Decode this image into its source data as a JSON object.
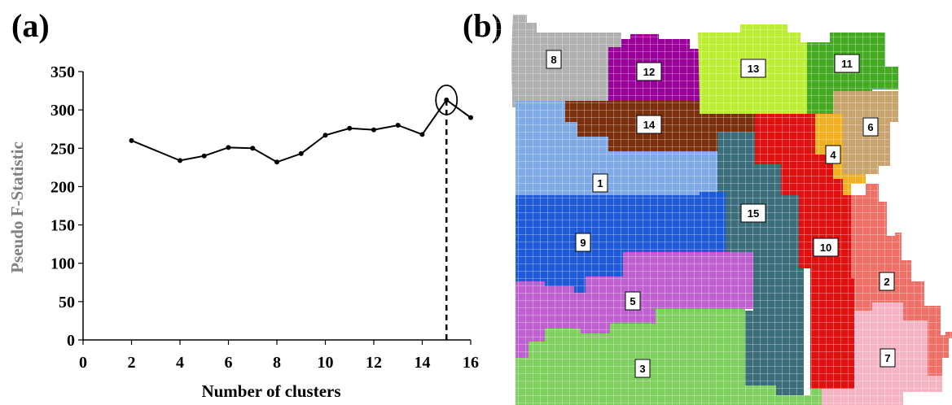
{
  "panel_a_label": "(a)",
  "panel_b_label": "(b)",
  "chart_data": {
    "type": "line",
    "title": "",
    "xlabel": "Number of clusters",
    "ylabel": "Pseudo F-Statistic",
    "xlim": [
      0,
      16
    ],
    "ylim": [
      0,
      350
    ],
    "xticks": [
      0,
      2,
      4,
      6,
      8,
      10,
      12,
      14,
      16
    ],
    "yticks": [
      0,
      50,
      100,
      150,
      200,
      250,
      300,
      350
    ],
    "grid": false,
    "series": [
      {
        "x": [
          2,
          4,
          5,
          6,
          7,
          8,
          9,
          10,
          11,
          12,
          13,
          14,
          15,
          16
        ],
        "values": [
          260,
          234,
          240,
          251,
          250,
          232,
          243,
          267,
          276,
          274,
          280,
          268,
          313,
          290
        ]
      }
    ],
    "annotations": [
      {
        "type": "circle",
        "x": 15,
        "y": 313
      },
      {
        "type": "dashed-drop-line",
        "x": 15,
        "from_y": 313,
        "to_y": 0
      }
    ],
    "colors": {
      "line": "#000000",
      "axis_label": "#808080"
    }
  },
  "cluster_map": {
    "regions": [
      {
        "label": "8",
        "color": "#b0b0b0"
      },
      {
        "label": "12",
        "color": "#990099"
      },
      {
        "label": "13",
        "color": "#bbee33"
      },
      {
        "label": "11",
        "color": "#44aa22"
      },
      {
        "label": "14",
        "color": "#7b2f0c"
      },
      {
        "label": "6",
        "color": "#c8a46e"
      },
      {
        "label": "4",
        "color": "#f0b020"
      },
      {
        "label": "1",
        "color": "#80aae6"
      },
      {
        "label": "15",
        "color": "#3b6d7a"
      },
      {
        "label": "9",
        "color": "#1e5ad8"
      },
      {
        "label": "10",
        "color": "#e01010"
      },
      {
        "label": "5",
        "color": "#c060d0"
      },
      {
        "label": "2",
        "color": "#f07068"
      },
      {
        "label": "3",
        "color": "#80d060"
      },
      {
        "label": "7",
        "color": "#f4b4c4"
      }
    ],
    "grid_line_color": "#ffffff"
  }
}
